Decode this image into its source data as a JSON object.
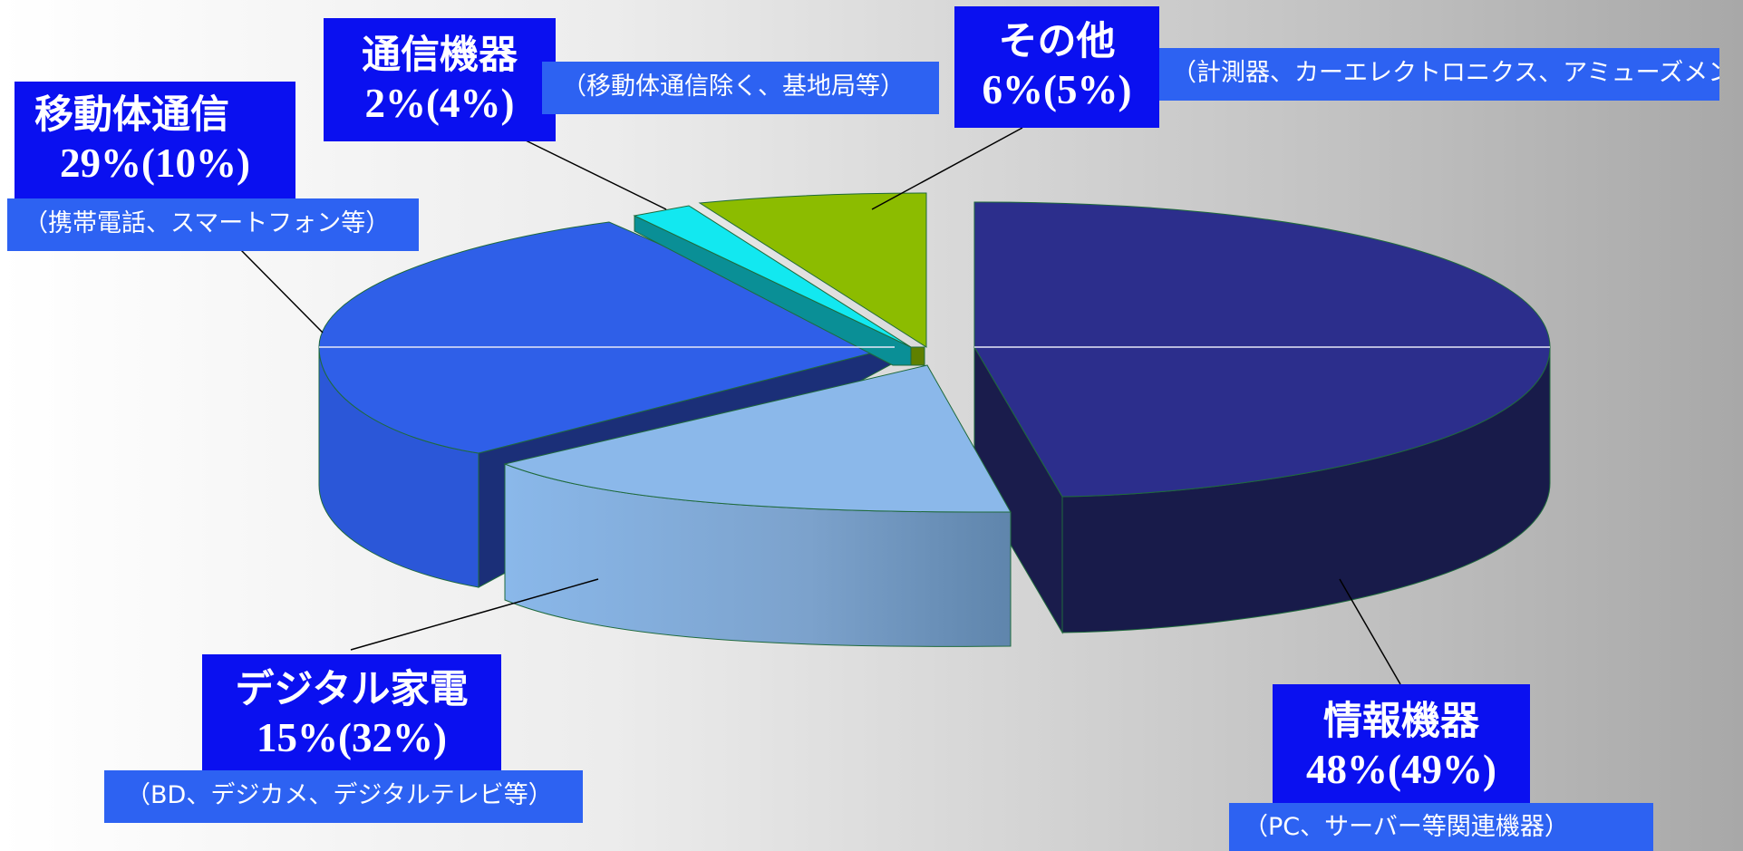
{
  "chart_data": {
    "type": "pie",
    "style": "3d-exploded",
    "slices": [
      {
        "name": "情報機器",
        "value_text": "48%(49%)",
        "share": 48,
        "share_paren": 49,
        "note": "（PC、サーバー等関連機器）",
        "color": "#2c2e8c",
        "side_color": "#181b4a"
      },
      {
        "name": "デジタル家電",
        "value_text": "15%(32%)",
        "share": 15,
        "share_paren": 32,
        "note": "（BD、デジカメ、デジタルテレビ等）",
        "color": "#8bb8ea",
        "side_color": "#7aa3d2"
      },
      {
        "name": "移動体通信",
        "value_text": "29%(10%)",
        "share": 29,
        "share_paren": 10,
        "note": "（携帯電話、スマートフォン等）",
        "color": "#2f5fe8",
        "side_color": "#2b57d8"
      },
      {
        "name": "通信機器",
        "value_text": "2%(4%)",
        "share": 2,
        "share_paren": 4,
        "note": "（移動体通信除く、基地局等）",
        "color": "#12e8f0",
        "side_color": "#0a8f96"
      },
      {
        "name": "その他",
        "value_text": "6%(5%)",
        "share": 6,
        "share_paren": 5,
        "note": "（計測器、カーエレクトロニクス、アミューズメント関連等）",
        "color": "#8cbc00",
        "side_color": "#5f8000"
      }
    ]
  }
}
